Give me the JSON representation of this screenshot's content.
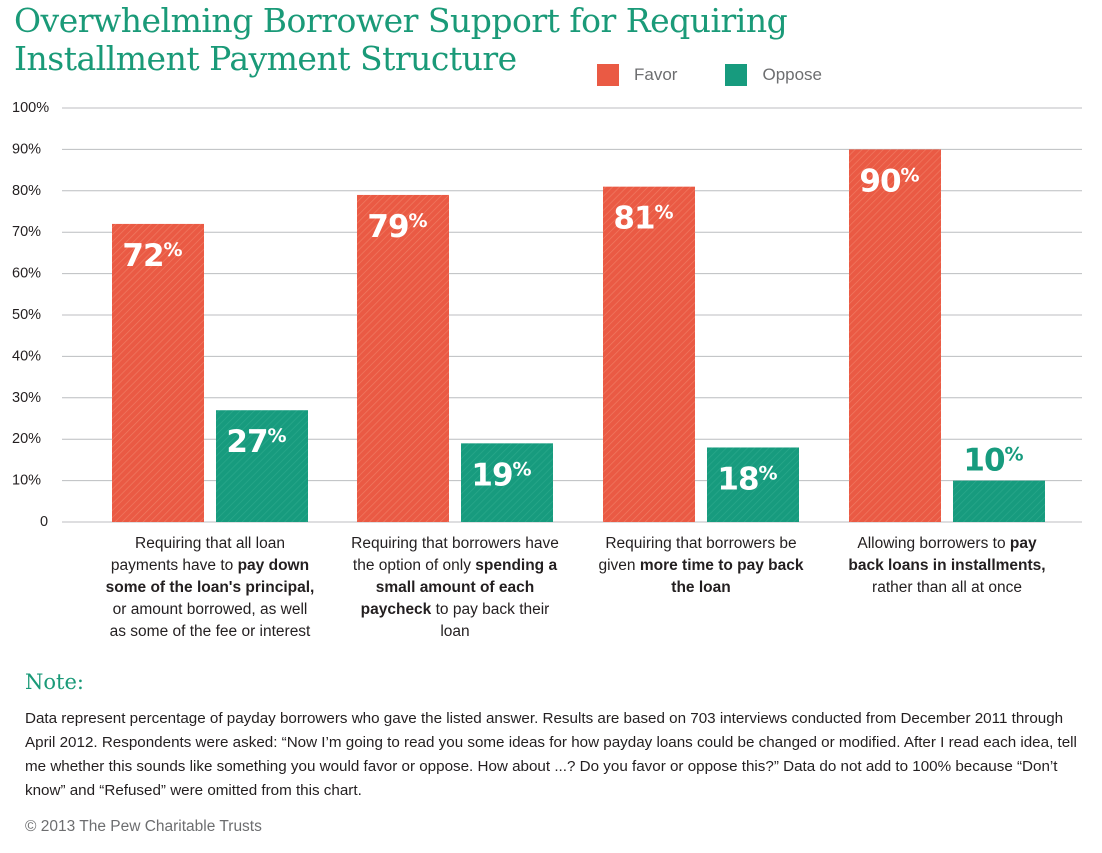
{
  "title": "Overwhelming Borrower Support for Requiring Installment Payment Structure",
  "legend": {
    "favor": "Favor",
    "oppose": "Oppose"
  },
  "colors": {
    "favor": "#ea5a44",
    "oppose": "#179b7e",
    "title": "#1a9a78",
    "gridline": "#bcbec0"
  },
  "chart_data": {
    "type": "bar",
    "ylim": [
      0,
      100
    ],
    "yticks": [
      "0",
      "10%",
      "20%",
      "30%",
      "40%",
      "50%",
      "60%",
      "70%",
      "80%",
      "90%",
      "100%"
    ],
    "grid": true,
    "legend_position": "top-right",
    "categories": [
      "Requiring that all loan payments have to pay down some of the loan's principal, or amount borrowed, as well as some of the fee or interest",
      "Requiring that borrowers have the option of only spending a small amount of each paycheck to pay back their loan",
      "Requiring that borrowers be given more time to pay back the loan",
      "Allowing borrowers to pay back loans in installments, rather than all at once"
    ],
    "series": [
      {
        "name": "Favor",
        "values": [
          72,
          79,
          81,
          90
        ]
      },
      {
        "name": "Oppose",
        "values": [
          27,
          19,
          18,
          10
        ]
      }
    ]
  },
  "category_labels": [
    [
      {
        "text": "Requiring that all loan payments have to ",
        "bold": false
      },
      {
        "text": "pay down some of the loan's principal,",
        "bold": true
      },
      {
        "text": " or amount borrowed, as well as some of the fee or interest",
        "bold": false
      }
    ],
    [
      {
        "text": "Requiring that borrowers have the option of only ",
        "bold": false
      },
      {
        "text": "spending a small amount of each paycheck",
        "bold": true
      },
      {
        "text": " to pay back their loan",
        "bold": false
      }
    ],
    [
      {
        "text": "Requiring that borrowers be given ",
        "bold": false
      },
      {
        "text": "more time to pay back the loan",
        "bold": true
      }
    ],
    [
      {
        "text": "Allowing borrowers to ",
        "bold": false
      },
      {
        "text": "pay back loans in installments,",
        "bold": true
      },
      {
        "text": " rather than all at once",
        "bold": false
      }
    ]
  ],
  "note": {
    "heading": "Note:",
    "text": "Data represent percentage of payday borrowers who gave the listed answer. Results are based on 703 interviews conducted from December 2011 through April 2012. Respondents were asked: “Now I’m going to read you some ideas for how payday loans could be changed or modified. After I read each idea, tell me whether this sounds like something you would favor or oppose. How about ...? Do you favor or oppose this?” Data do not add to 100% because “Don’t know” and “Refused” were omitted from this chart."
  },
  "copyright": "© 2013 The Pew Charitable Trusts"
}
